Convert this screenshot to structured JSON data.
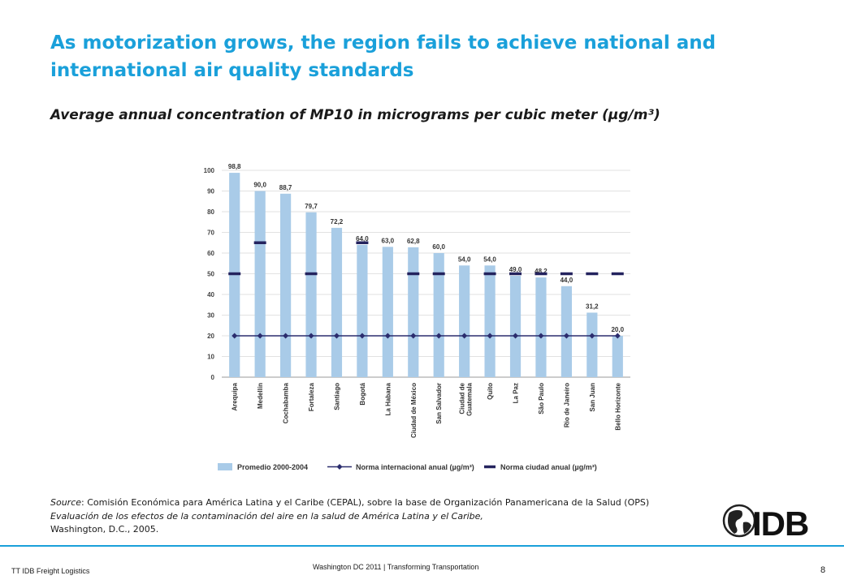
{
  "slide": {
    "title": "As motorization grows, the region fails to achieve national and international air quality standards",
    "subtitle": "Average annual concentration of MP10 in micrograms per cubic meter (µg/m³)"
  },
  "source": {
    "label": "Source",
    "line1_rest": ": Comisión Económica para América Latina y el Caribe (CEPAL), sobre la base de Organización Panamericana de la Salud (OPS)",
    "line2": "Evaluación de los efectos de la contaminación del aire en la salud de América Latina y el Caribe,",
    "line3": "Washington, D.C., 2005."
  },
  "logo": {
    "text": "IDB",
    "icon": "globe-icon"
  },
  "footer": {
    "left": "TT IDB Freight Logistics",
    "center": "Washington DC 2011 | Transforming Transportation",
    "page": "8"
  },
  "colors": {
    "title": "#1aa0da",
    "bar": "#a9cbe8",
    "intl_line": "#2b2d6e",
    "city_norm": "#24235e"
  },
  "chart_data": {
    "type": "bar",
    "categories": [
      "Arequipa",
      "Medellín",
      "Cochabamba",
      "Fortaleza",
      "Santiago",
      "Bogotá",
      "La Habana",
      "Ciudad de México",
      "San Salvador",
      "Ciudad de Guatemala",
      "Quito",
      "La Paz",
      "São Paulo",
      "Rio de Janeiro",
      "San Juan",
      "Bello Horizonte"
    ],
    "ylim": [
      0,
      100
    ],
    "yticks": [
      0,
      10,
      20,
      30,
      40,
      50,
      60,
      70,
      80,
      90,
      100
    ],
    "series": [
      {
        "name": "Promedio 2000-2004",
        "kind": "bar",
        "values": [
          98.8,
          90.0,
          88.7,
          79.7,
          72.2,
          64.0,
          63.0,
          62.8,
          60.0,
          54.0,
          54.0,
          49.0,
          48.2,
          44.0,
          31.2,
          20.0
        ],
        "labels": [
          "98,8",
          "90,0",
          "88,7",
          "79,7",
          "72,2",
          "64,0",
          "63,0",
          "62,8",
          "60,0",
          "54,0",
          "54,0",
          "49,0",
          "48,2",
          "44,0",
          "31,2",
          "20,0"
        ]
      },
      {
        "name": "Norma internacional anual (µg/m³)",
        "kind": "line",
        "values": [
          20,
          20,
          20,
          20,
          20,
          20,
          20,
          20,
          20,
          20,
          20,
          20,
          20,
          20,
          20,
          20
        ]
      },
      {
        "name": "Norma ciudad anual (µg/m³)",
        "kind": "dash",
        "values": [
          50,
          65,
          null,
          50,
          null,
          65,
          null,
          50,
          50,
          null,
          50,
          50,
          50,
          50,
          50,
          50
        ]
      }
    ],
    "legend_position": "bottom"
  }
}
